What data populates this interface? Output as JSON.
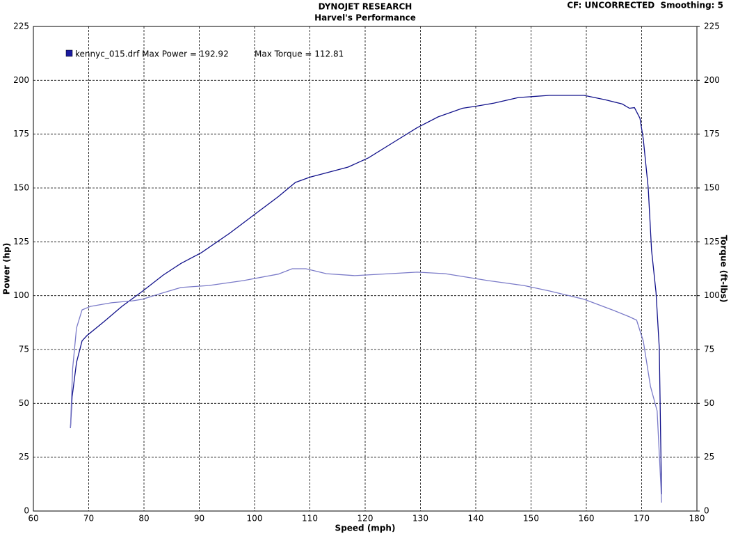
{
  "chart_data": {
    "type": "line",
    "title": "DYNOJET RESEARCH",
    "subtitle": "Harvel's Performance",
    "corner_note": "CF: UNCORRECTED  Smoothing: 5",
    "legend_file": "kennyc_015.drf Max Power = 192.92",
    "legend_torque": "Max Torque = 112.81",
    "legend_color": "#1a1aa0",
    "xlabel": "Speed (mph)",
    "ylabel": "Power (hp)",
    "y2label": "Torque (ft-lbs)",
    "xlim": [
      60,
      180
    ],
    "xticks": [
      60,
      70,
      80,
      90,
      100,
      110,
      120,
      130,
      140,
      150,
      160,
      170,
      180
    ],
    "ylim": [
      0,
      225
    ],
    "yticks": [
      0,
      25,
      50,
      75,
      100,
      125,
      150,
      175,
      200,
      225
    ],
    "y2lim": [
      0,
      225
    ],
    "y2ticks": [
      0,
      25,
      50,
      75,
      100,
      125,
      150,
      175,
      200,
      225
    ],
    "grid": true,
    "series": [
      {
        "color": "#10108a",
        "x": [
          66.7,
          67.0,
          67.8,
          68.8,
          69.7,
          72.8,
          76.0,
          79.7,
          83.5,
          86.7,
          90.4,
          95.5,
          100.5,
          104.3,
          107.4,
          110.0,
          113.0,
          116.9,
          120.6,
          125.0,
          129.4,
          133.2,
          137.6,
          140.1,
          143.3,
          147.7,
          153.3,
          159.6,
          163.4,
          166.5,
          167.8,
          168.7,
          169.7,
          170.3,
          171.2,
          171.8,
          172.6,
          173.2,
          173.6
        ],
        "values": [
          38.5,
          53,
          69,
          79,
          81.5,
          88,
          95,
          102,
          109.6,
          115,
          120,
          129,
          138.7,
          146,
          152.6,
          155,
          157,
          159.7,
          164,
          171,
          178,
          183,
          187,
          188,
          189.4,
          192,
          193,
          193,
          191,
          189,
          187,
          187.3,
          182.4,
          172.7,
          150,
          121,
          101.5,
          75.7,
          7.8
        ]
      },
      {
        "color": "#7a7ac8",
        "axis": "y2",
        "x": [
          66.7,
          67.1,
          67.8,
          68.8,
          70.3,
          74.1,
          77.9,
          79.7,
          82.9,
          86.7,
          91.7,
          98.0,
          104.3,
          106.8,
          109.3,
          113.0,
          118.1,
          124.4,
          129.4,
          134.5,
          142.2,
          148.7,
          153.3,
          159.6,
          164.7,
          167.8,
          169.1,
          170.3,
          171.6,
          172.8,
          173.5,
          173.6
        ],
        "values": [
          38.5,
          66,
          85,
          93.4,
          95,
          96.7,
          97.6,
          98.3,
          100.9,
          103.8,
          104.7,
          107,
          110,
          112.5,
          112.5,
          110.2,
          109.3,
          110.2,
          110.9,
          110.2,
          107,
          104.7,
          102.2,
          98.3,
          93.4,
          90.2,
          88.6,
          78.9,
          57.9,
          46.5,
          11,
          3.9
        ]
      }
    ]
  }
}
